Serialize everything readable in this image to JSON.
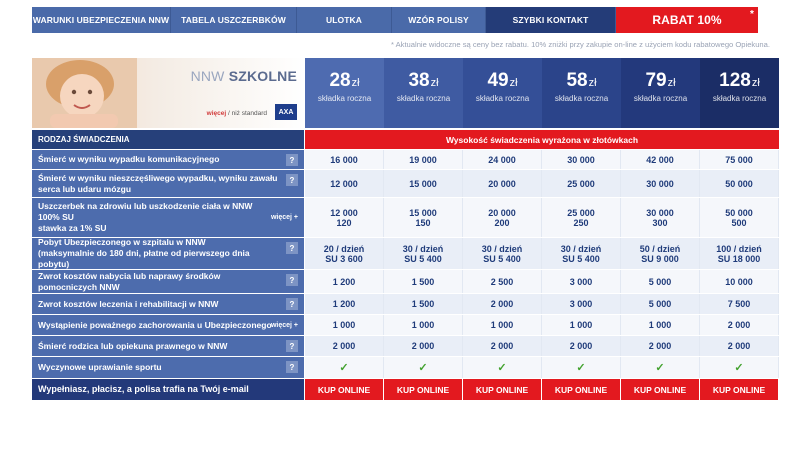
{
  "nav": {
    "items": [
      {
        "label": "WARUNKI UBEZPIECZENIA NNW"
      },
      {
        "label": "TABELA USZCZERBKÓW"
      },
      {
        "label": "ULOTKA"
      },
      {
        "label": "WZÓR POLISY"
      },
      {
        "label": "SZYBKI KONTAKT"
      },
      {
        "label": "RABAT 10%"
      }
    ],
    "star": "*"
  },
  "note": "* Aktualnie widoczne są ceny bez rabatu. 10% zniżki przy zakupie on-line z użyciem kodu rabatowego Opiekuna.",
  "hero": {
    "title_light": "NNW",
    "title_bold": "SZKOLNE",
    "brand_a": "więcej",
    "brand_b": "/ niż standard",
    "logo": "AXA"
  },
  "prices": [
    {
      "amount": "28",
      "currency": "zł",
      "label": "składka roczna"
    },
    {
      "amount": "38",
      "currency": "zł",
      "label": "składka roczna"
    },
    {
      "amount": "49",
      "currency": "zł",
      "label": "składka roczna"
    },
    {
      "amount": "58",
      "currency": "zł",
      "label": "składka roczna"
    },
    {
      "amount": "79",
      "currency": "zł",
      "label": "składka roczna"
    },
    {
      "amount": "128",
      "currency": "zł",
      "label": "składka roczna"
    }
  ],
  "price_colors": [
    "#4e6bb0",
    "#3f5ba2",
    "#344f97",
    "#2b448a",
    "#23397c",
    "#1b2d66"
  ],
  "table": {
    "header_label": "RODZAJ ŚWIADCZENIA",
    "header_value": "Wysokość świadczenia wyrażona w złotówkach",
    "help": "?",
    "more": "więcej +",
    "rows": [
      {
        "label": "Śmierć w wyniku wypadku komunikacyjnego",
        "values": [
          "16 000",
          "19 000",
          "24 000",
          "30 000",
          "42 000",
          "75 000"
        ]
      },
      {
        "label": "Śmierć w wyniku nieszczęśliwego wypadku, wyniku zawału serca lub udaru mózgu",
        "values": [
          "12 000",
          "15 000",
          "20 000",
          "25 000",
          "30 000",
          "50 000"
        ]
      },
      {
        "label_a": "Uszczerbek na zdrowiu lub uszkodzenie ciała w NNW",
        "label_b": "100% SU",
        "label_c": "stawka za 1% SU",
        "values": [
          "12 000",
          "15 000",
          "20 000",
          "25 000",
          "30 000",
          "50 000"
        ],
        "values2": [
          "120",
          "150",
          "200",
          "250",
          "300",
          "500"
        ]
      },
      {
        "label_a": "Pobyt Ubezpieczonego w szpitalu w NNW",
        "label_b": "(maksymalnie do 180 dni,",
        "label_c": "płatne od pierwszego dnia pobytu)",
        "values": [
          "20 / dzień",
          "30 / dzień",
          "30 / dzień",
          "30 / dzień",
          "50 / dzień",
          "100 / dzień"
        ],
        "values2": [
          "SU 3 600",
          "SU 5 400",
          "SU 5 400",
          "SU 5 400",
          "SU 9 000",
          "SU 18 000"
        ]
      },
      {
        "label": "Zwrot kosztów nabycia lub naprawy środków pomocniczych NNW",
        "values": [
          "1 200",
          "1 500",
          "2 500",
          "3 000",
          "5 000",
          "10 000"
        ]
      },
      {
        "label": "Zwrot kosztów leczenia i rehabilitacji w NNW",
        "values": [
          "1 200",
          "1 500",
          "2 000",
          "3 000",
          "5 000",
          "7 500"
        ]
      },
      {
        "label": "Wystąpienie poważnego zachorowania u Ubezpieczonego",
        "values": [
          "1 000",
          "1 000",
          "1 000",
          "1 000",
          "1 000",
          "2 000"
        ]
      },
      {
        "label": "Śmierć rodzica lub opiekuna prawnego w NNW",
        "values": [
          "2 000",
          "2 000",
          "2 000",
          "2 000",
          "2 000",
          "2 000"
        ]
      },
      {
        "label": "Wyczynowe uprawianie sportu",
        "check": "✓"
      }
    ],
    "footer_label": "Wypełniasz, płacisz, a polisa trafia na Twój e-mail",
    "buy_label": "KUP ONLINE"
  }
}
